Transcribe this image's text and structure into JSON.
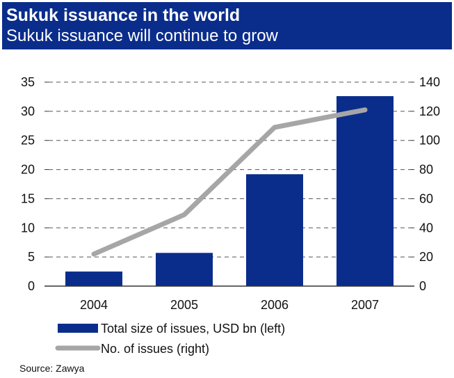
{
  "header": {
    "title": "Sukuk issuance in the world",
    "subtitle": "Sukuk issuance will continue to grow"
  },
  "source": "Source: Zawya",
  "colors": {
    "header_bg": "#0a2d8c",
    "bar": "#0a2d8c",
    "line": "#a6a6a6",
    "grid": "#555555"
  },
  "chart_data": {
    "type": "bar",
    "title": "Sukuk issuance in the world",
    "subtitle": "Sukuk issuance will continue to grow",
    "categories": [
      "2004",
      "2005",
      "2006",
      "2007"
    ],
    "series": [
      {
        "name": "Total size of issues, USD bn (left)",
        "type": "bar",
        "axis": "left",
        "values": [
          2.5,
          5.7,
          19.2,
          32.6
        ]
      },
      {
        "name": "No. of issues (right)",
        "type": "line",
        "axis": "right",
        "values": [
          22,
          49,
          109,
          121
        ]
      }
    ],
    "y_left": {
      "min": 0,
      "max": 35,
      "ticks": [
        "0",
        "5",
        "10",
        "15",
        "20",
        "25",
        "30",
        "35"
      ]
    },
    "y_right": {
      "min": 0,
      "max": 140,
      "ticks": [
        "0",
        "20",
        "40",
        "60",
        "80",
        "100",
        "120",
        "140"
      ]
    },
    "grid": true,
    "legend": "bottom-left"
  }
}
